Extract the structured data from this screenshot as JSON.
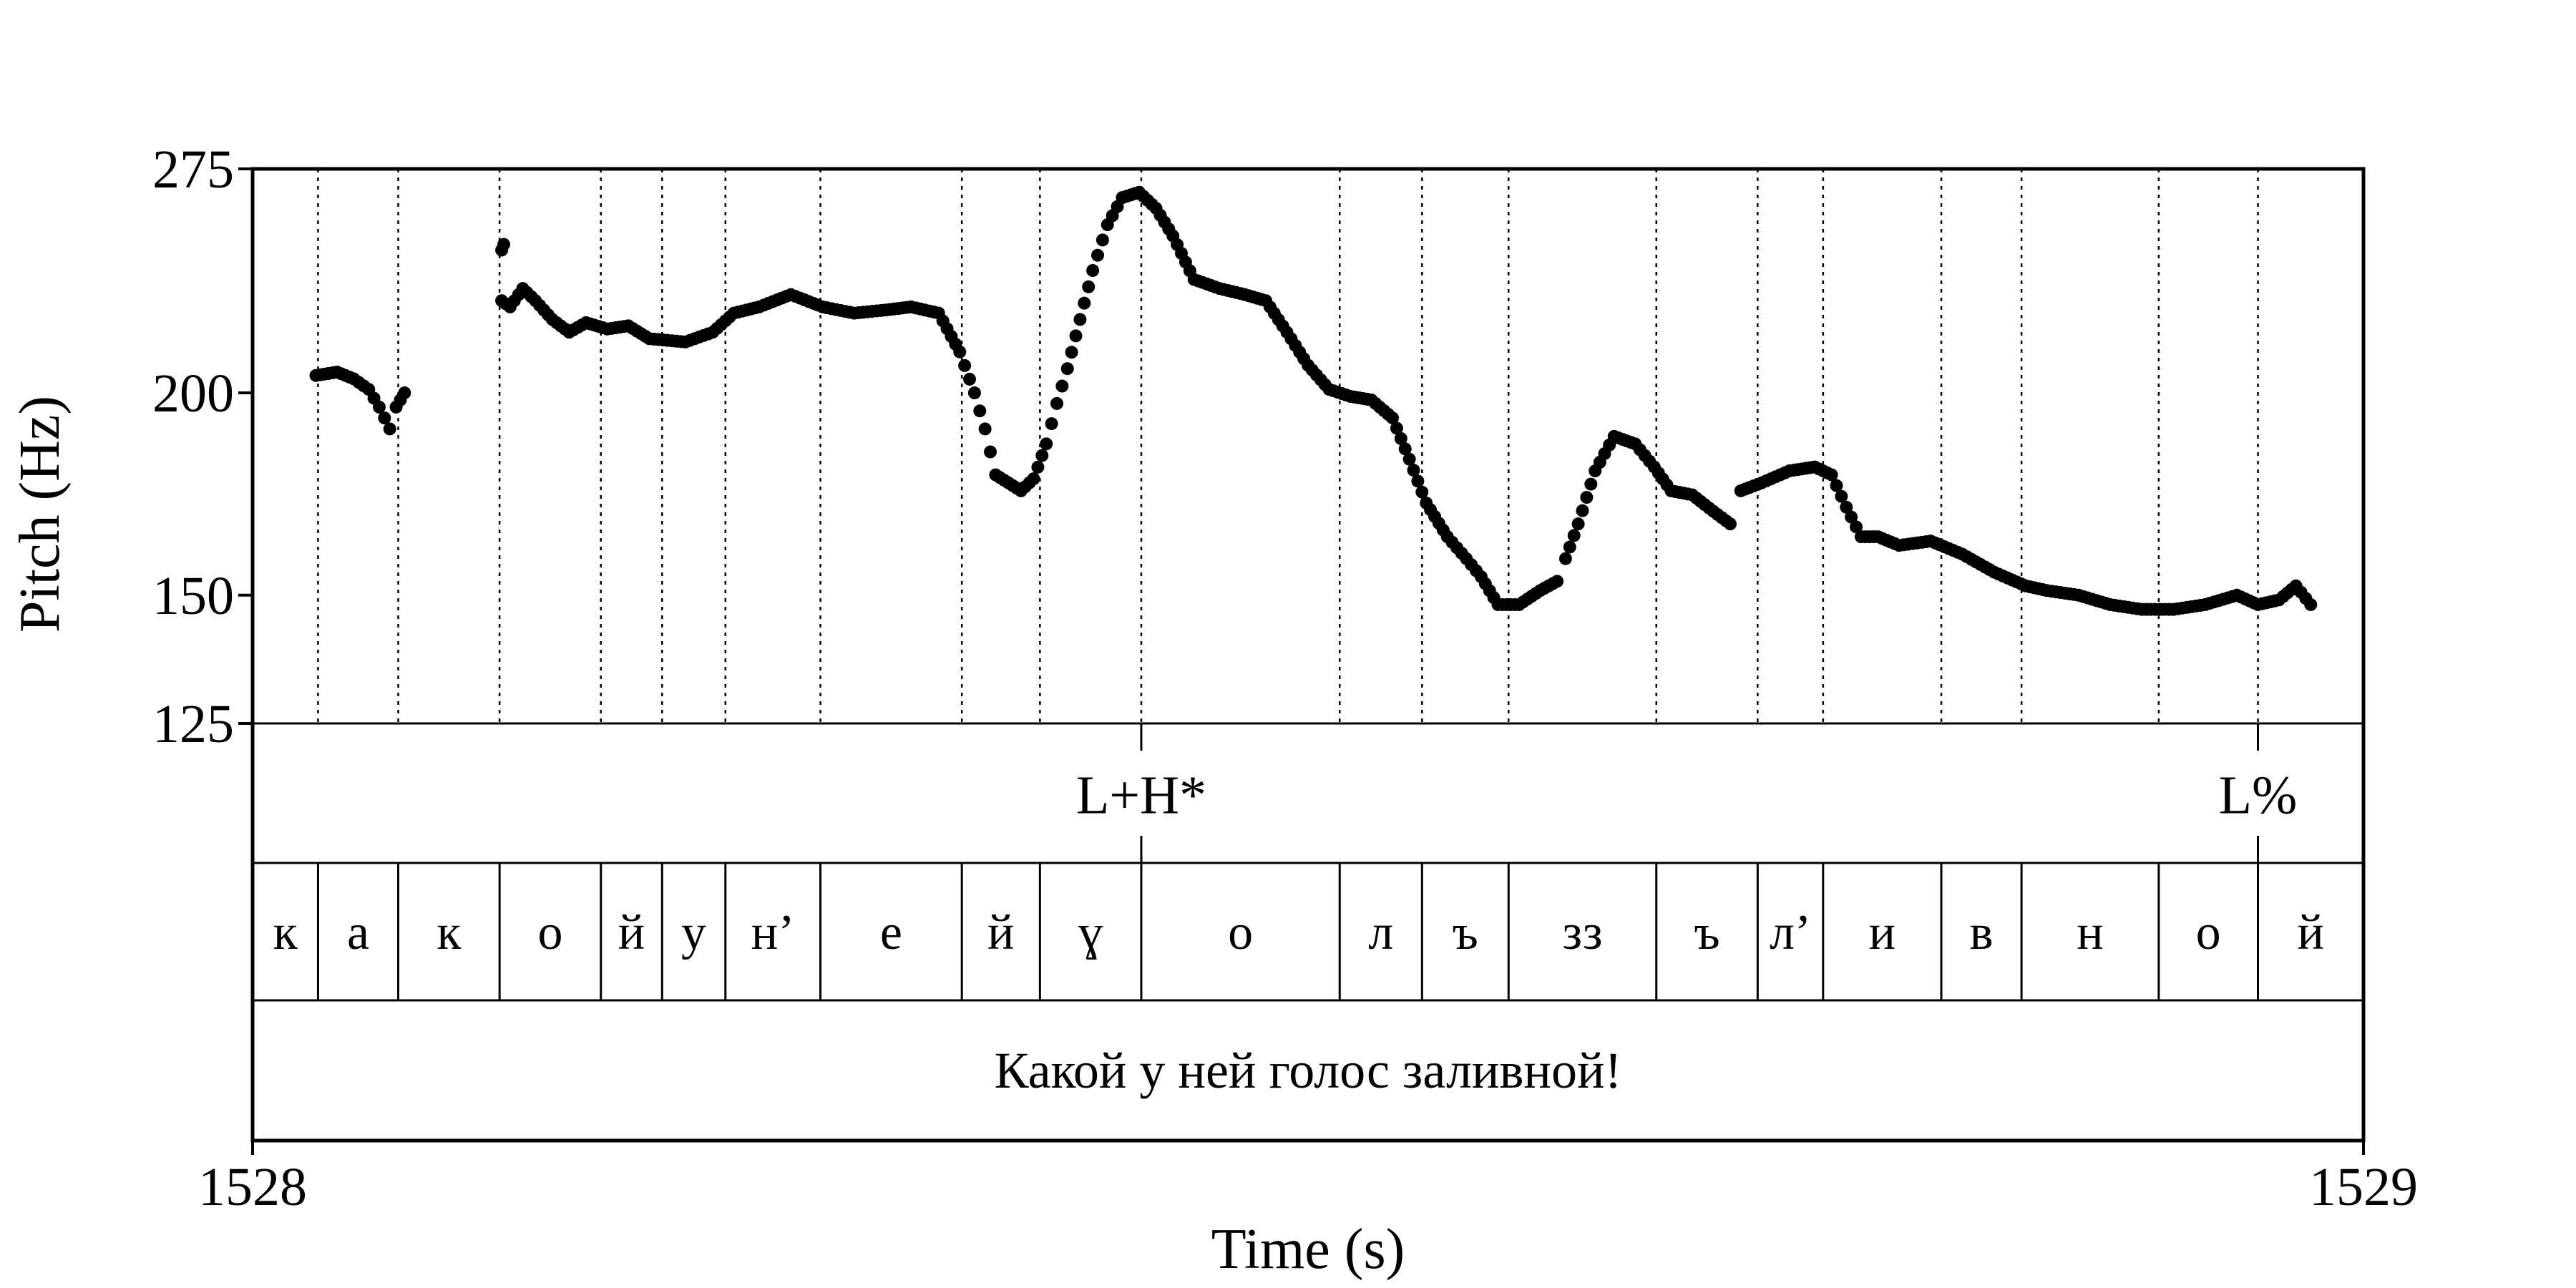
{
  "chart_data": {
    "type": "scatter",
    "xlabel": "Time (s)",
    "ylabel": "Pitch (Hz)",
    "x_ticks": [
      "1528",
      "1529"
    ],
    "y_ticks": [
      275,
      200,
      150,
      125
    ],
    "xlim": [
      1528,
      1529
    ],
    "ylim": [
      125,
      275
    ],
    "y_scale": "log",
    "grid": "dotted vertical lines at segment boundaries",
    "tone_tier": [
      {
        "label": "L+H*",
        "time": 1528.421
      },
      {
        "label": "L%",
        "time": 1528.95
      }
    ],
    "segment_boundaries": [
      1528.031,
      1528.069,
      1528.117,
      1528.165,
      1528.194,
      1528.224,
      1528.269,
      1528.336,
      1528.373,
      1528.421,
      1528.515,
      1528.554,
      1528.595,
      1528.665,
      1528.713,
      1528.744,
      1528.8,
      1528.838,
      1528.903,
      1528.95
    ],
    "segments": [
      "к",
      "а",
      "к",
      "о",
      "й",
      "у",
      "н’",
      "е",
      "й",
      "ɣ",
      "о",
      "л",
      "ъ",
      "зз",
      "ъ",
      "л’",
      "и",
      "в",
      "н",
      "о",
      "й"
    ],
    "sentence": "Какой у ней голос заливной!",
    "pitch_segments": [
      [
        [
          1528.03,
          205
        ],
        [
          1528.04,
          206
        ],
        [
          1528.048,
          204
        ],
        [
          1528.055,
          201
        ],
        [
          1528.06,
          196
        ],
        [
          1528.065,
          190
        ]
      ],
      [
        [
          1528.068,
          196
        ],
        [
          1528.072,
          200
        ]
      ],
      [
        [
          1528.118,
          245
        ],
        [
          1528.119,
          247
        ]
      ],
      [
        [
          1528.118,
          228
        ],
        [
          1528.122,
          226
        ],
        [
          1528.128,
          232
        ],
        [
          1528.134,
          228
        ],
        [
          1528.142,
          222
        ],
        [
          1528.15,
          218
        ],
        [
          1528.158,
          221
        ],
        [
          1528.168,
          219
        ],
        [
          1528.178,
          220
        ],
        [
          1528.188,
          216
        ],
        [
          1528.205,
          215
        ],
        [
          1528.218,
          218
        ],
        [
          1528.228,
          224
        ],
        [
          1528.24,
          226
        ],
        [
          1528.255,
          230
        ],
        [
          1528.27,
          226
        ],
        [
          1528.285,
          224
        ],
        [
          1528.3,
          225
        ],
        [
          1528.312,
          226
        ],
        [
          1528.325,
          224
        ],
        [
          1528.335,
          212
        ],
        [
          1528.342,
          200
        ],
        [
          1528.347,
          190
        ],
        [
          1528.352,
          178
        ],
        [
          1528.358,
          176
        ],
        [
          1528.364,
          174
        ],
        [
          1528.37,
          177
        ],
        [
          1528.376,
          186
        ],
        [
          1528.381,
          197
        ],
        [
          1528.386,
          207
        ],
        [
          1528.392,
          222
        ],
        [
          1528.398,
          238
        ],
        [
          1528.405,
          254
        ],
        [
          1528.412,
          264
        ],
        [
          1528.42,
          266
        ],
        [
          1528.428,
          260
        ],
        [
          1528.436,
          250
        ],
        [
          1528.446,
          235
        ],
        [
          1528.458,
          232
        ],
        [
          1528.47,
          230
        ],
        [
          1528.48,
          228
        ],
        [
          1528.49,
          218
        ],
        [
          1528.5,
          208
        ],
        [
          1528.51,
          201
        ],
        [
          1528.52,
          199
        ],
        [
          1528.53,
          198
        ],
        [
          1528.54,
          193
        ],
        [
          1528.548,
          182
        ],
        [
          1528.556,
          171
        ],
        [
          1528.566,
          163
        ],
        [
          1528.575,
          158
        ],
        [
          1528.582,
          154
        ],
        [
          1528.59,
          148
        ],
        [
          1528.6,
          148
        ],
        [
          1528.61,
          151
        ],
        [
          1528.618,
          153
        ]
      ],
      [
        [
          1528.622,
          158
        ],
        [
          1528.628,
          166
        ],
        [
          1528.636,
          179
        ],
        [
          1528.645,
          188
        ],
        [
          1528.655,
          186
        ],
        [
          1528.664,
          180
        ],
        [
          1528.672,
          174
        ],
        [
          1528.682,
          173
        ],
        [
          1528.692,
          169
        ],
        [
          1528.7,
          166
        ]
      ],
      [
        [
          1528.705,
          174
        ],
        [
          1528.715,
          176
        ],
        [
          1528.728,
          179
        ],
        [
          1528.74,
          180
        ],
        [
          1528.748,
          178
        ],
        [
          1528.755,
          170
        ],
        [
          1528.762,
          163
        ],
        [
          1528.77,
          163
        ],
        [
          1528.78,
          161
        ],
        [
          1528.795,
          162
        ],
        [
          1528.81,
          159
        ],
        [
          1528.825,
          155
        ],
        [
          1528.84,
          152
        ],
        [
          1528.85,
          151
        ],
        [
          1528.865,
          150
        ],
        [
          1528.88,
          148
        ],
        [
          1528.895,
          147
        ],
        [
          1528.91,
          147
        ],
        [
          1528.925,
          148
        ],
        [
          1528.94,
          150
        ],
        [
          1528.95,
          148
        ],
        [
          1528.96,
          149
        ],
        [
          1528.968,
          152
        ],
        [
          1528.975,
          148
        ]
      ]
    ]
  }
}
